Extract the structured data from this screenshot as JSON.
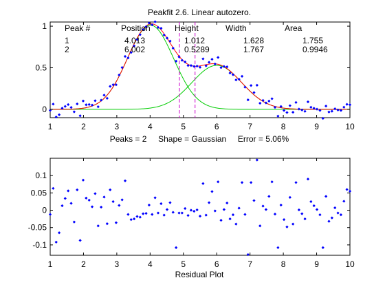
{
  "chart_data": [
    {
      "type": "scatter",
      "title": "Peakfit 2.6. Linear autozero.",
      "xlabel": "Peaks = 2     Shape = Gaussian     Error = 5.06%",
      "ylabel": "",
      "xlim": [
        1,
        10
      ],
      "ylim": [
        -0.1,
        1.05
      ],
      "x_ticks": [
        "1",
        "2",
        "3",
        "4",
        "5",
        "6",
        "7",
        "8",
        "9",
        "10"
      ],
      "y_ticks": [
        "0",
        "0.5",
        "1"
      ],
      "y_tick_values": [
        0,
        0.5,
        1
      ],
      "grid": false,
      "table": {
        "headers": [
          "Peak #",
          "Position",
          "Height",
          "Width",
          "Area"
        ],
        "rows": [
          [
            "1",
            "4.013",
            "1.012",
            "1.628",
            "1.755"
          ],
          [
            "2",
            "6.002",
            "0.5289",
            "1.767",
            "0.9946"
          ]
        ]
      },
      "peaks": [
        {
          "position": 4.013,
          "height": 1.012,
          "width": 1.628
        },
        {
          "position": 6.002,
          "height": 0.5289,
          "width": 1.767
        }
      ],
      "marker_lines_x": [
        4.88,
        5.35
      ],
      "residuals_ref": 1,
      "colors": {
        "data": "#0000ff",
        "fit": "#ff0000",
        "components": "#00cc00",
        "markers": "#cc00cc"
      }
    },
    {
      "type": "scatter",
      "title": "",
      "xlabel": "Residual Plot",
      "ylabel": "",
      "xlim": [
        1,
        10
      ],
      "ylim": [
        -0.13,
        0.15
      ],
      "x_ticks": [
        "1",
        "2",
        "3",
        "4",
        "5",
        "6",
        "7",
        "8",
        "9",
        "10"
      ],
      "y_ticks": [
        "0.1",
        "0.05",
        "0",
        "-0.05",
        "-0.1"
      ],
      "y_tick_values": [
        0.1,
        0.05,
        0,
        -0.05,
        -0.1
      ],
      "grid": false,
      "series": [
        {
          "x": [
            1.0,
            1.09,
            1.18,
            1.27,
            1.36,
            1.45,
            1.54,
            1.63,
            1.72,
            1.81,
            1.9,
            1.99,
            2.08,
            2.17,
            2.26,
            2.35,
            2.44,
            2.53,
            2.62,
            2.71,
            2.8,
            2.89,
            2.98,
            3.07,
            3.16,
            3.25,
            3.34,
            3.43,
            3.52,
            3.61,
            3.7,
            3.79,
            3.88,
            3.97,
            4.06,
            4.15,
            4.24,
            4.33,
            4.42,
            4.51,
            4.6,
            4.69,
            4.78,
            4.87,
            4.96,
            5.05,
            5.14,
            5.23,
            5.32,
            5.41,
            5.5,
            5.59,
            5.68,
            5.77,
            5.86,
            5.95,
            6.04,
            6.13,
            6.22,
            6.31,
            6.4,
            6.49,
            6.58,
            6.67,
            6.76,
            6.85,
            6.94,
            7.03,
            7.12,
            7.21,
            7.3,
            7.39,
            7.48,
            7.57,
            7.66,
            7.75,
            7.84,
            7.93,
            8.02,
            8.11,
            8.2,
            8.29,
            8.38,
            8.47,
            8.56,
            8.65,
            8.74,
            8.83,
            8.92,
            9.01,
            9.1,
            9.19,
            9.28,
            9.37,
            9.46,
            9.55,
            9.64,
            9.73,
            9.82,
            9.91,
            10.0
          ],
          "y": [
            -0.012,
            0.063,
            -0.092,
            -0.065,
            0.013,
            0.034,
            0.056,
            0.02,
            -0.034,
            0.059,
            -0.087,
            0.087,
            0.035,
            0.029,
            0.01,
            0.048,
            -0.045,
            0.009,
            0.038,
            -0.039,
            0.059,
            0.025,
            -0.036,
            0.014,
            0.03,
            0.085,
            -0.012,
            -0.027,
            -0.025,
            -0.018,
            -0.02,
            -0.01,
            -0.009,
            0.015,
            -0.012,
            0.036,
            -0.008,
            0.019,
            -0.014,
            0.002,
            0.022,
            -0.006,
            -0.108,
            -0.008,
            -0.008,
            0.005,
            -0.015,
            0.0,
            -0.003,
            0.001,
            -0.017,
            0.077,
            -0.014,
            0.022,
            0.054,
            -0.002,
            0.082,
            -0.029,
            0.002,
            0.021,
            -0.025,
            -0.013,
            -0.04,
            0.006,
            0.08,
            -0.012,
            -0.128,
            0.08,
            0.028,
            0.145,
            -0.045,
            0.012,
            0.002,
            0.04,
            0.082,
            -0.011,
            -0.108,
            0.015,
            -0.027,
            -0.048,
            0.037,
            -0.04,
            0.08,
            0.001,
            -0.01,
            -0.025,
            0.09,
            0.025,
            0.013,
            0.002,
            -0.013,
            -0.108,
            0.04,
            -0.032,
            -0.022,
            0.007,
            -0.008,
            -0.013,
            0.026,
            0.06,
            0.055
          ]
        }
      ],
      "colors": {
        "data": "#0000ff"
      }
    }
  ]
}
